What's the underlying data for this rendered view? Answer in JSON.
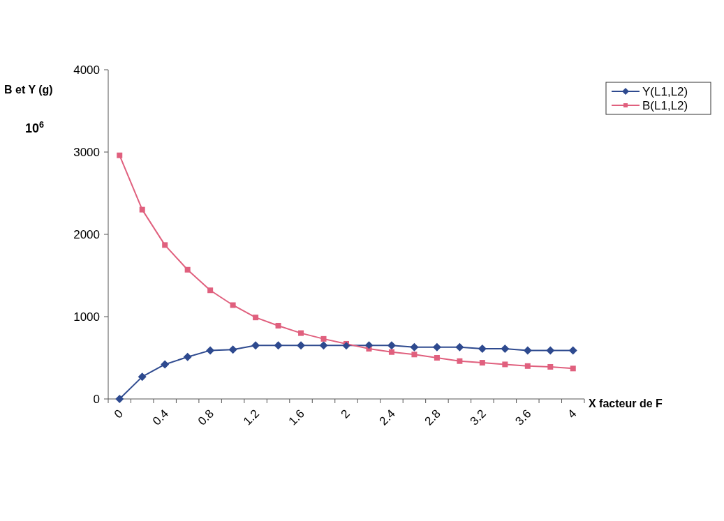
{
  "chart_data": {
    "type": "line",
    "ylabel": "B et Y (g)",
    "xlabel": "X facteur de F",
    "annotations": [
      "10$^{6}$"
    ],
    "categories": [
      "0",
      null,
      "0.4",
      null,
      "0.8",
      null,
      "1.2",
      null,
      "1.6",
      null,
      "2",
      null,
      "2.4",
      null,
      "2.8",
      null,
      "3.2",
      null,
      "3.6",
      null,
      "4"
    ],
    "ylim": [
      0,
      4000
    ],
    "yticks": [
      0,
      1000,
      2000,
      3000,
      4000
    ],
    "grid": false,
    "legend": "top right",
    "series": [
      {
        "name": "Y(L1,L2)",
        "color": "#2e4a8f",
        "marker": "diamond",
        "values": [
          0,
          270,
          420,
          510,
          590,
          600,
          650,
          650,
          650,
          650,
          650,
          650,
          650,
          630,
          630,
          630,
          610,
          610,
          590,
          590,
          590
        ]
      },
      {
        "name": "B(L1,L2)",
        "color": "#e0607e",
        "marker": "square",
        "values": [
          2960,
          2300,
          1870,
          1570,
          1320,
          1140,
          990,
          890,
          800,
          730,
          670,
          610,
          570,
          540,
          500,
          460,
          440,
          420,
          400,
          390,
          370
        ]
      }
    ]
  }
}
